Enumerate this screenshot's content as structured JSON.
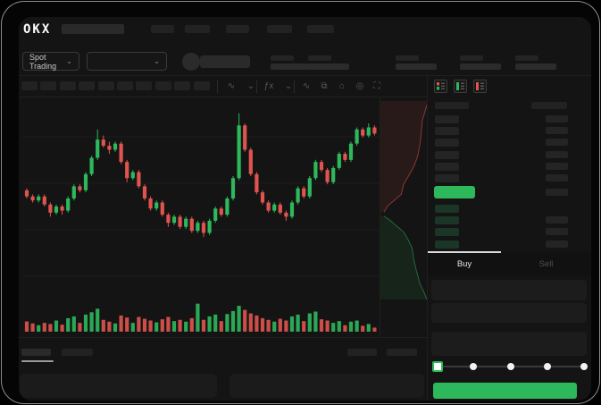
{
  "logo_text": "OKX",
  "nav": {
    "skeleton_items": 5
  },
  "market_bar": {
    "pair_selector_label": "Spot Trading",
    "chevron": "⌄",
    "stat_columns": 5
  },
  "chart_toolbar": {
    "interval_skeletons": 10,
    "icons": [
      {
        "name": "line-style-icon",
        "glyph": "∿"
      },
      {
        "name": "chevron-down-icon",
        "glyph": "⌄"
      },
      {
        "name": "indicators-icon",
        "glyph": "ƒx"
      },
      {
        "name": "chevron-down-icon",
        "glyph": "⌄"
      },
      {
        "name": "overlay-icon",
        "glyph": "∿"
      },
      {
        "name": "draw-tools-icon",
        "glyph": "⧉"
      },
      {
        "name": "camera-icon",
        "glyph": "⌂"
      },
      {
        "name": "settings-icon",
        "glyph": "◎"
      },
      {
        "name": "fullscreen-icon",
        "glyph": "⛶"
      }
    ]
  },
  "order_book": {
    "view_toggles": [
      "combined-book-icon",
      "bids-only-icon",
      "asks-only-icon"
    ],
    "ask_rows": 6,
    "bid_rows": 4,
    "last_price_highlight_color": "#2eb85c"
  },
  "trade_panel": {
    "tabs": [
      {
        "label": "Buy",
        "active": true
      },
      {
        "label": "Sell",
        "active": false
      }
    ],
    "input_rows": 3,
    "slider_stops": 5
  },
  "bottom_bar": {
    "tab_skeletons": 2,
    "right_skeletons": 2,
    "panels": 2
  },
  "colors": {
    "green": "#2eb85c",
    "red": "#df544f",
    "bg": "#141414",
    "skeleton": "#2a2a2a",
    "grid": "#1c1c1c",
    "bid_tint": "#1b3527"
  },
  "chart_data": {
    "type": "candlestick",
    "title": "",
    "price_scale": [
      0,
      100
    ],
    "grid": true,
    "candles": [
      [
        56,
        57,
        52,
        53
      ],
      [
        53,
        54,
        50,
        51
      ],
      [
        51,
        54,
        50,
        53
      ],
      [
        53,
        54,
        48,
        49
      ],
      [
        49,
        50,
        43,
        45
      ],
      [
        45,
        49,
        44,
        48
      ],
      [
        48,
        49,
        44,
        46
      ],
      [
        46,
        53,
        45,
        52
      ],
      [
        52,
        59,
        51,
        58
      ],
      [
        58,
        59,
        55,
        56
      ],
      [
        56,
        65,
        55,
        64
      ],
      [
        64,
        73,
        63,
        72
      ],
      [
        72,
        86,
        71,
        81
      ],
      [
        81,
        83,
        77,
        78
      ],
      [
        78,
        80,
        74,
        76
      ],
      [
        76,
        80,
        75,
        79
      ],
      [
        79,
        80,
        69,
        70
      ],
      [
        70,
        71,
        60,
        62
      ],
      [
        62,
        66,
        61,
        65
      ],
      [
        65,
        66,
        57,
        58
      ],
      [
        58,
        59,
        51,
        52
      ],
      [
        52,
        53,
        46,
        47
      ],
      [
        47,
        51,
        46,
        50
      ],
      [
        50,
        51,
        43,
        44
      ],
      [
        44,
        45,
        38,
        40
      ],
      [
        40,
        44,
        39,
        43
      ],
      [
        43,
        44,
        37,
        38
      ],
      [
        38,
        43,
        37,
        42
      ],
      [
        42,
        43,
        35,
        36
      ],
      [
        36,
        41,
        35,
        40
      ],
      [
        40,
        41,
        33,
        35
      ],
      [
        35,
        42,
        34,
        41
      ],
      [
        41,
        48,
        40,
        47
      ],
      [
        47,
        48,
        43,
        44
      ],
      [
        44,
        53,
        43,
        52
      ],
      [
        52,
        63,
        51,
        62
      ],
      [
        62,
        94,
        61,
        88
      ],
      [
        88,
        89,
        75,
        76
      ],
      [
        76,
        77,
        63,
        64
      ],
      [
        64,
        65,
        54,
        55
      ],
      [
        55,
        56,
        49,
        50
      ],
      [
        50,
        51,
        45,
        46
      ],
      [
        46,
        50,
        45,
        49
      ],
      [
        49,
        50,
        44,
        45
      ],
      [
        45,
        46,
        41,
        43
      ],
      [
        43,
        51,
        42,
        50
      ],
      [
        50,
        58,
        49,
        57
      ],
      [
        57,
        58,
        52,
        53
      ],
      [
        53,
        63,
        52,
        62
      ],
      [
        62,
        71,
        61,
        70
      ],
      [
        70,
        71,
        65,
        66
      ],
      [
        66,
        67,
        59,
        60
      ],
      [
        60,
        68,
        59,
        67
      ],
      [
        67,
        75,
        66,
        74
      ],
      [
        74,
        75,
        70,
        71
      ],
      [
        71,
        80,
        70,
        79
      ],
      [
        79,
        87,
        78,
        86
      ],
      [
        86,
        87,
        82,
        83
      ],
      [
        83,
        89,
        82,
        87
      ],
      [
        87,
        88,
        83,
        84
      ]
    ],
    "volume": [
      35,
      28,
      22,
      30,
      26,
      38,
      24,
      46,
      52,
      30,
      58,
      66,
      78,
      40,
      34,
      28,
      55,
      48,
      30,
      50,
      44,
      38,
      32,
      42,
      50,
      36,
      40,
      34,
      46,
      95,
      40,
      52,
      58,
      36,
      60,
      70,
      88,
      74,
      62,
      55,
      46,
      40,
      34,
      44,
      38,
      52,
      58,
      36,
      62,
      68,
      42,
      38,
      30,
      36,
      22,
      34,
      38,
      20,
      26,
      14
    ],
    "depth": {
      "asks": [
        [
          1,
          0.02
        ],
        [
          0.95,
          0.06
        ],
        [
          0.9,
          0.1
        ],
        [
          0.88,
          0.16
        ],
        [
          0.85,
          0.22
        ],
        [
          0.8,
          0.28
        ],
        [
          0.72,
          0.33
        ],
        [
          0.6,
          0.38
        ],
        [
          0.5,
          0.42
        ],
        [
          0.45,
          0.47
        ],
        [
          0.3,
          0.5
        ],
        [
          0.15,
          0.53
        ],
        [
          0.08,
          0.56
        ]
      ],
      "bids": [
        [
          0.08,
          0.58
        ],
        [
          0.2,
          0.6
        ],
        [
          0.35,
          0.63
        ],
        [
          0.5,
          0.66
        ],
        [
          0.6,
          0.7
        ],
        [
          0.68,
          0.74
        ],
        [
          0.72,
          0.8
        ],
        [
          0.78,
          0.86
        ],
        [
          0.85,
          0.92
        ],
        [
          0.95,
          0.97
        ],
        [
          1,
          1
        ]
      ]
    }
  }
}
